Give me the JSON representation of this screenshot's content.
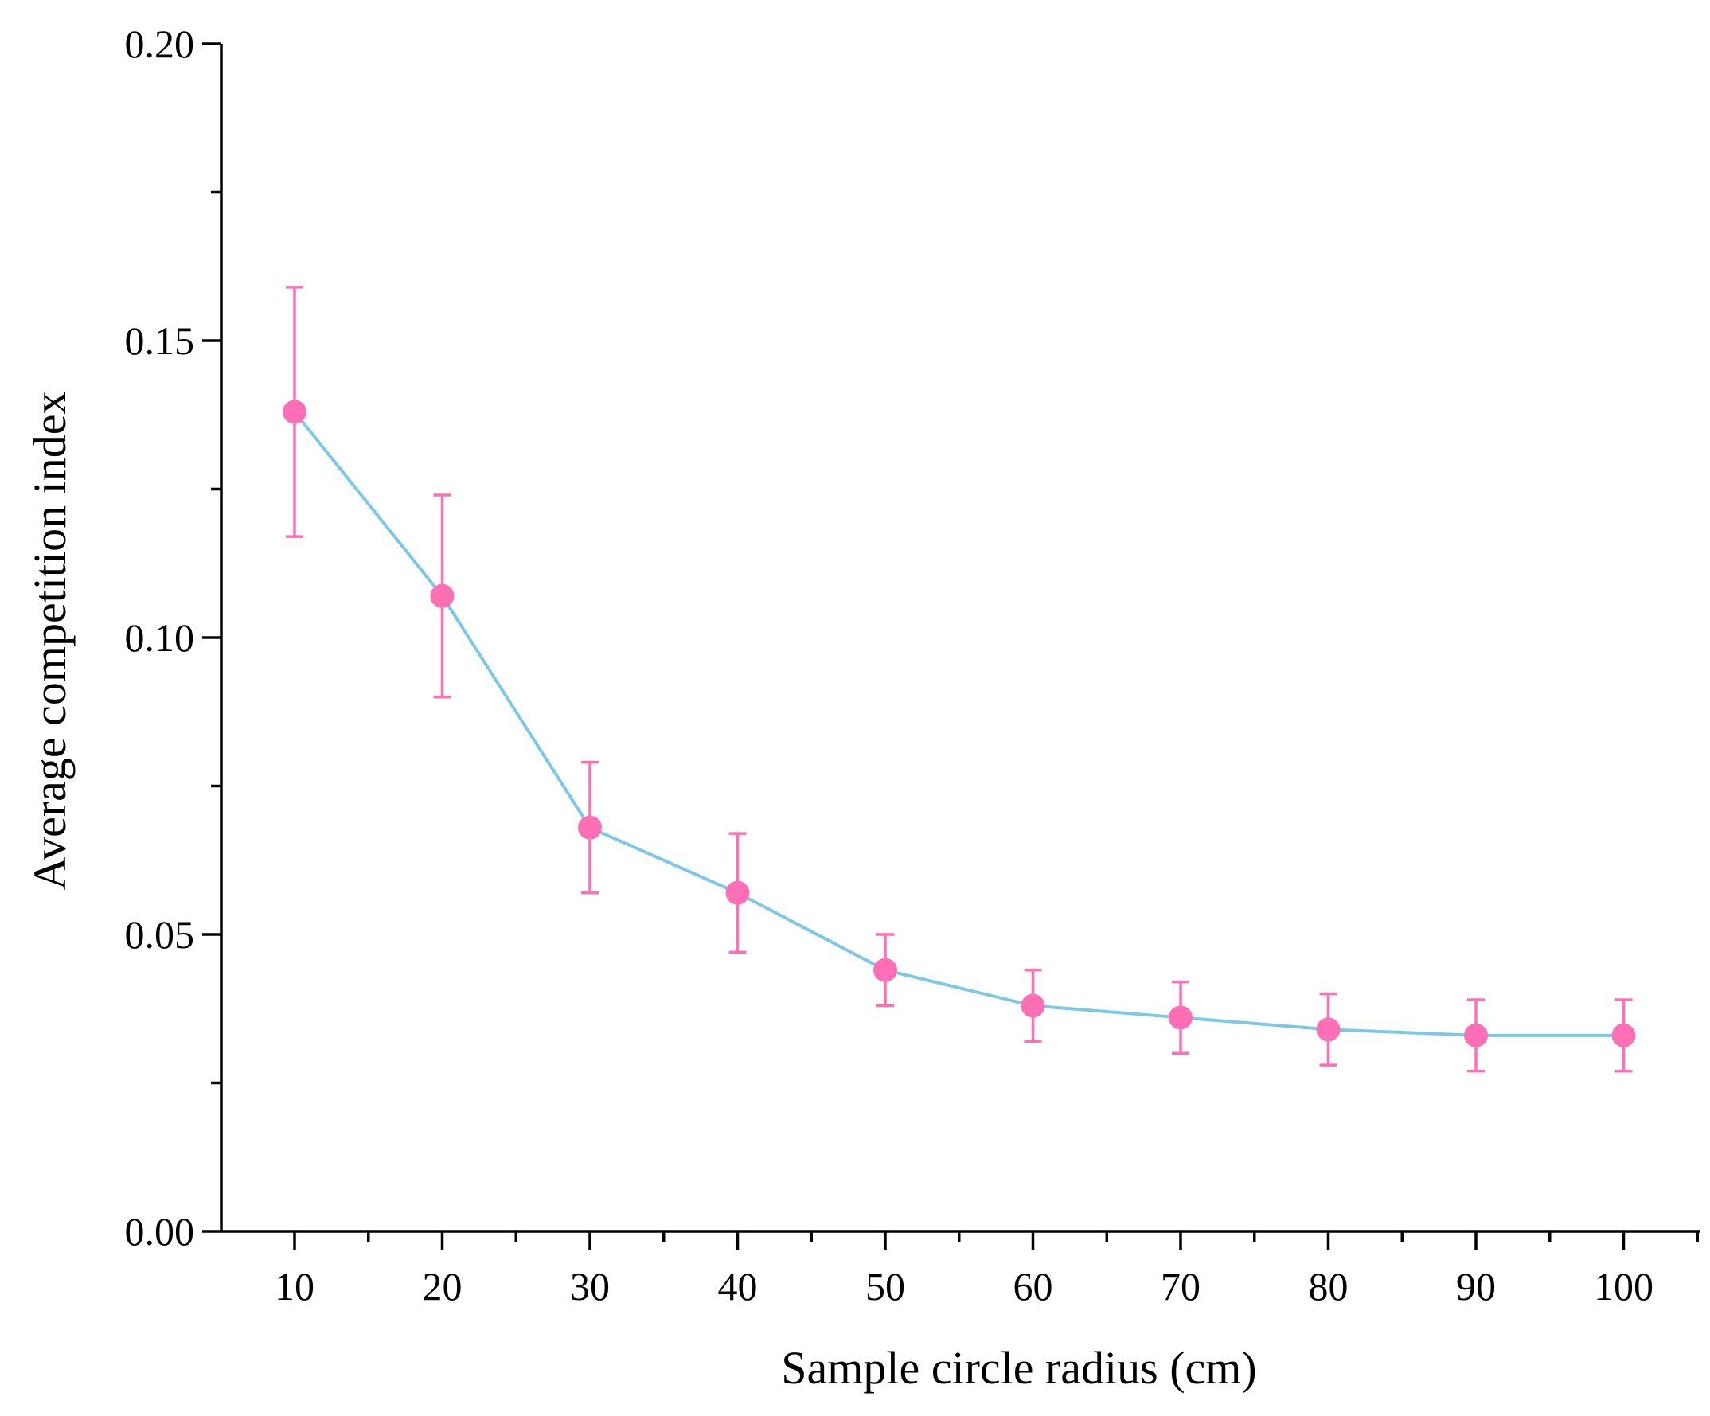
{
  "chart_data": {
    "type": "line",
    "title": "",
    "xlabel": "Sample circle radius (cm)",
    "ylabel": "Average competition index",
    "x": [
      10,
      20,
      30,
      40,
      50,
      60,
      70,
      80,
      90,
      100
    ],
    "x_tick_labels": [
      "10",
      "20",
      "30",
      "40",
      "50",
      "60",
      "70",
      "80",
      "90",
      "100"
    ],
    "ylim": [
      0.0,
      0.2
    ],
    "y_ticks": [
      0.0,
      0.05,
      0.1,
      0.15,
      0.2
    ],
    "y_tick_labels": [
      "0.00",
      "0.05",
      "0.10",
      "0.15",
      "0.20"
    ],
    "y_minor_ticks": [
      0.025,
      0.075,
      0.125,
      0.175
    ],
    "series": [
      {
        "name": "Average competition index",
        "values": [
          0.138,
          0.107,
          0.068,
          0.057,
          0.044,
          0.038,
          0.036,
          0.034,
          0.033,
          0.033
        ],
        "error": [
          0.021,
          0.017,
          0.011,
          0.01,
          0.006,
          0.006,
          0.006,
          0.006,
          0.006,
          0.006
        ]
      }
    ],
    "grid": false,
    "legend": "none",
    "colors": {
      "line": "#7cc8e6",
      "marker": "#ff6fb5",
      "errorbar": "#ff6fb5",
      "axis": "#000000"
    }
  }
}
